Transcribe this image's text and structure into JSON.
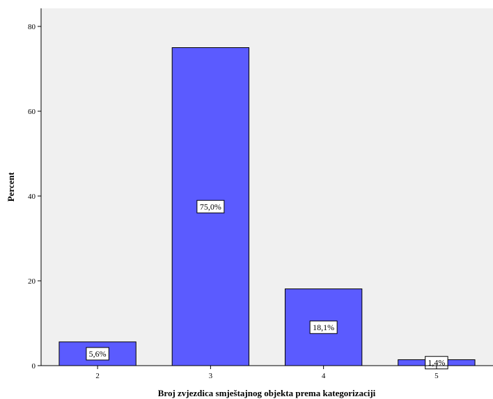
{
  "chart_data": {
    "type": "bar",
    "categories": [
      "2",
      "3",
      "4",
      "5"
    ],
    "values": [
      5.6,
      75.0,
      18.1,
      1.4
    ],
    "data_labels": [
      "5,6%",
      "75,0%",
      "18,1%",
      "1,4%"
    ],
    "xlabel": "Broj zvjezdica smještajnog objekta prema kategorizaciji",
    "ylabel": "Percent",
    "ylim": [
      0,
      80
    ],
    "yticks": [
      0,
      20,
      40,
      60,
      80
    ],
    "grid": false,
    "bar_color": "#5b5bff",
    "plot_bg": "#f0f0f0"
  }
}
